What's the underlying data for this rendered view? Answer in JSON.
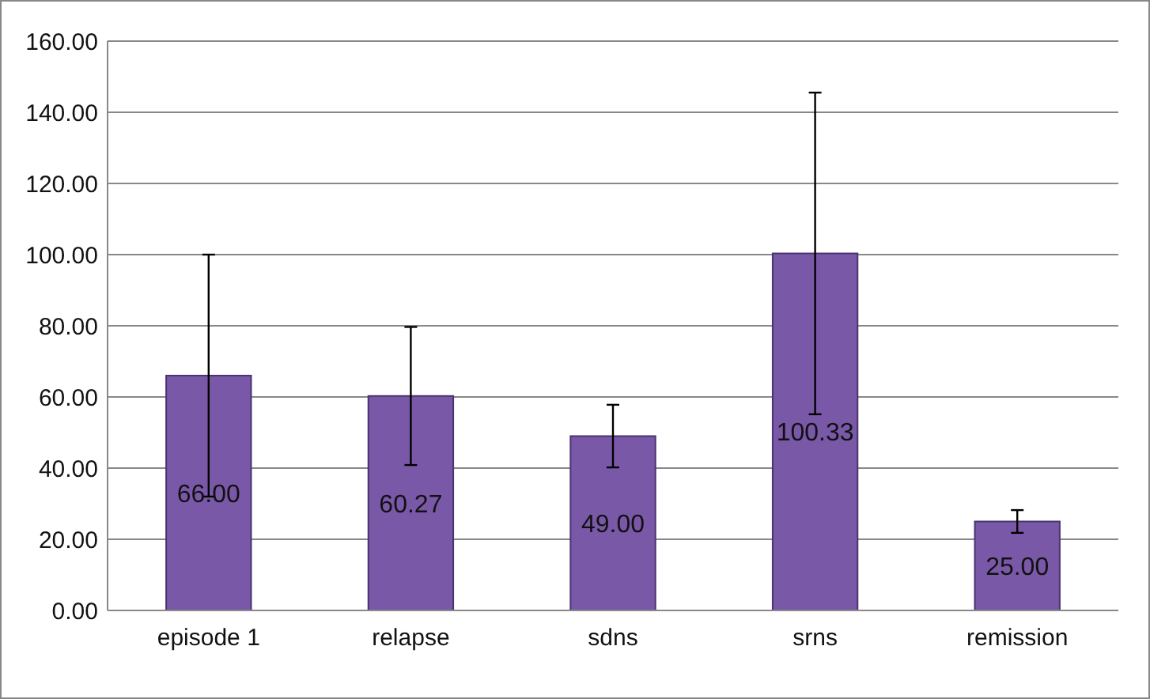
{
  "chart_data": {
    "type": "bar",
    "categories": [
      "episode 1",
      "relapse",
      "sdns",
      "srns",
      "remission"
    ],
    "values": [
      66.0,
      60.27,
      49.0,
      100.33,
      25.0
    ],
    "errors": [
      34,
      19.4,
      8.8,
      45.2,
      3.2
    ],
    "color": "#7a58a8",
    "ylim": [
      0,
      160
    ],
    "yticks": [
      {
        "value": 0,
        "label": "0.00"
      },
      {
        "value": 20,
        "label": "20.00"
      },
      {
        "value": 40,
        "label": "40.00"
      },
      {
        "value": 60,
        "label": "60.00"
      },
      {
        "value": 80,
        "label": "80.00"
      },
      {
        "value": 100,
        "label": "100.00"
      },
      {
        "value": 120,
        "label": "120.00"
      },
      {
        "value": 140,
        "label": "140.00"
      },
      {
        "value": 160,
        "label": "160.00"
      }
    ],
    "grid": "y",
    "value_labels": [
      "66.00",
      "60.27",
      "49.00",
      "100.33",
      "25.00"
    ]
  }
}
